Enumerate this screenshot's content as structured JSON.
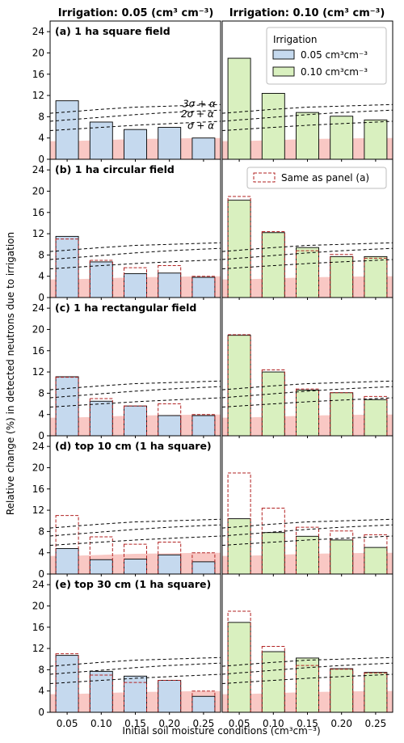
{
  "column_titles": [
    "Irrigation: 0.05 (cm³ cm⁻³)",
    "Irrigation: 0.10 (cm³ cm⁻³)"
  ],
  "legend": {
    "title": "Irrigation",
    "entries": [
      "0.05 cm³cm⁻³",
      "0.10 cm³cm⁻³"
    ],
    "colors": [
      "#c5d9ee",
      "#d9f0bf"
    ]
  },
  "legend_b": {
    "label": "Same as panel (a)"
  },
  "sigma_labels": [
    "3σ + α",
    "2σ + α",
    "σ + α"
  ],
  "colors": {
    "bar_left": "#c5d9ee",
    "bar_right": "#d9f0bf",
    "band": "#f9c8c4",
    "dashed_ref": "#b22222",
    "threshold": "#000000"
  },
  "chart_data": {
    "type": "bar",
    "categories": [
      "0.05",
      "0.10",
      "0.15",
      "0.20",
      "0.25"
    ],
    "xlabel": "Initial soil moisture conditions (cm³cm⁻³)",
    "ylabel": "Relative change (%) in detected neutrons due to irrigation",
    "ylim": [
      0,
      26
    ],
    "yticks": [
      0,
      4,
      8,
      12,
      16,
      20,
      24
    ],
    "band_alpha": [
      3.4,
      3.6,
      3.8,
      3.9,
      4.0
    ],
    "thresholds": {
      "sigma": [
        5.6,
        6.0,
        6.4,
        6.7,
        7.0
      ],
      "2sigma": [
        7.4,
        7.9,
        8.4,
        8.8,
        9.1
      ],
      "3sigma": [
        8.9,
        9.4,
        9.8,
        10.0,
        10.2
      ]
    },
    "panels": [
      {
        "title": "(a) 1 ha square field",
        "left": [
          11.0,
          7.0,
          5.6,
          6.0,
          4.0
        ],
        "right": [
          19.0,
          12.4,
          8.8,
          8.1,
          7.4
        ]
      },
      {
        "title": "(b) 1 ha circular field",
        "left": [
          11.5,
          6.7,
          4.5,
          4.6,
          3.8
        ],
        "right": [
          18.3,
          12.2,
          9.4,
          7.7,
          7.7
        ]
      },
      {
        "title": "(c) 1 ha rectangular field",
        "left": [
          11.1,
          6.5,
          5.6,
          3.8,
          3.8
        ],
        "right": [
          18.9,
          12.0,
          8.6,
          8.1,
          6.8
        ]
      },
      {
        "title": "(d) top 10 cm (1 ha square)",
        "left": [
          4.8,
          2.7,
          2.8,
          3.6,
          2.3
        ],
        "right": [
          10.4,
          7.8,
          7.1,
          6.4,
          5.0
        ]
      },
      {
        "title": "(e) top 30 cm (1 ha square)",
        "left": [
          10.7,
          7.7,
          6.8,
          6.0,
          3.0
        ],
        "right": [
          16.9,
          11.4,
          10.2,
          8.2,
          7.5
        ]
      }
    ]
  }
}
